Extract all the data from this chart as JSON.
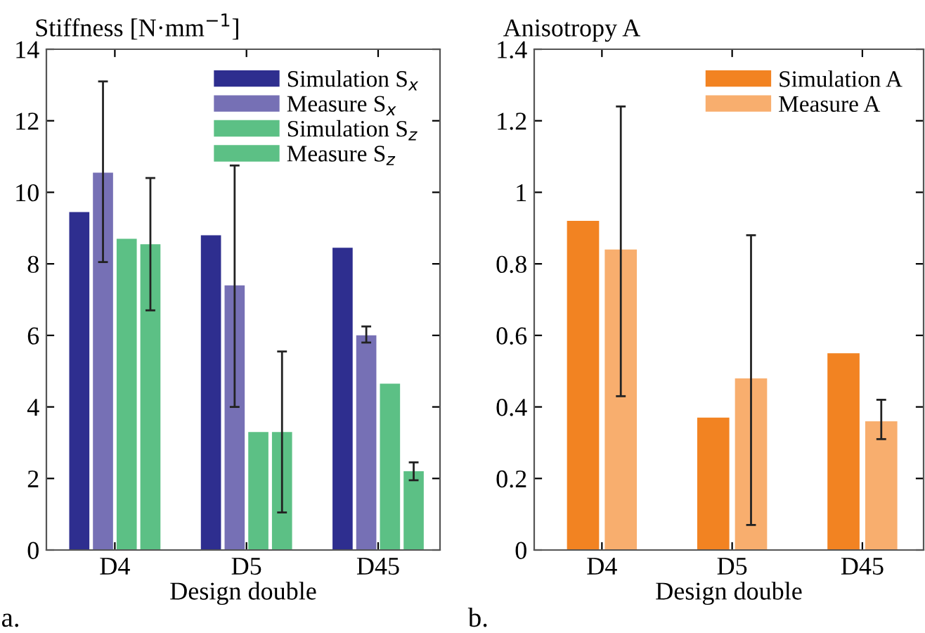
{
  "chart_data": [
    {
      "type": "bar",
      "ylabel": "Stiffness [N·mm$^{−1}$]",
      "xlabel": "Design double",
      "categories": [
        "D4",
        "D5",
        "D45"
      ],
      "ylim": [
        0,
        14
      ],
      "yticks": [
        0,
        2,
        4,
        6,
        8,
        10,
        12,
        14
      ],
      "legend": "top right",
      "annotations": [
        "a."
      ],
      "series": [
        {
          "name": "Simulation S$_{x}$",
          "color": "#2e2e8f",
          "values": [
            9.45,
            8.8,
            8.45
          ]
        },
        {
          "name": "Measure S$_{x}$",
          "color": "#7670b5",
          "values": [
            10.55,
            7.4,
            6.0
          ],
          "errors": [
            [
              8.05,
              13.1
            ],
            [
              4.0,
              10.75
            ],
            [
              5.8,
              6.25
            ]
          ]
        },
        {
          "name": "Simulation S$_{z}$",
          "color": "#5cc085",
          "values": [
            8.7,
            3.3,
            4.65
          ]
        },
        {
          "name": "Measure S$_{z}$",
          "color": "#5cc085",
          "values": [
            8.55,
            3.3,
            2.2
          ],
          "errors": [
            [
              6.7,
              10.4
            ],
            [
              1.05,
              5.55
            ],
            [
              1.95,
              2.45
            ]
          ]
        }
      ]
    },
    {
      "type": "bar",
      "ylabel": "Anisotropy A",
      "xlabel": "Design double",
      "categories": [
        "D4",
        "D5",
        "D45"
      ],
      "ylim": [
        0,
        1.4
      ],
      "yticks": [
        0,
        0.2,
        0.4,
        0.6,
        0.8,
        1,
        1.2,
        1.4
      ],
      "legend": "top right",
      "annotations": [
        "b."
      ],
      "series": [
        {
          "name": "Simulation A",
          "color": "#f28322",
          "values": [
            0.92,
            0.37,
            0.55
          ]
        },
        {
          "name": "Measure A",
          "color": "#f8ae6e",
          "values": [
            0.84,
            0.48,
            0.36
          ],
          "errors": [
            [
              0.43,
              1.24
            ],
            [
              0.07,
              0.88
            ],
            [
              0.31,
              0.42
            ]
          ]
        }
      ]
    }
  ]
}
